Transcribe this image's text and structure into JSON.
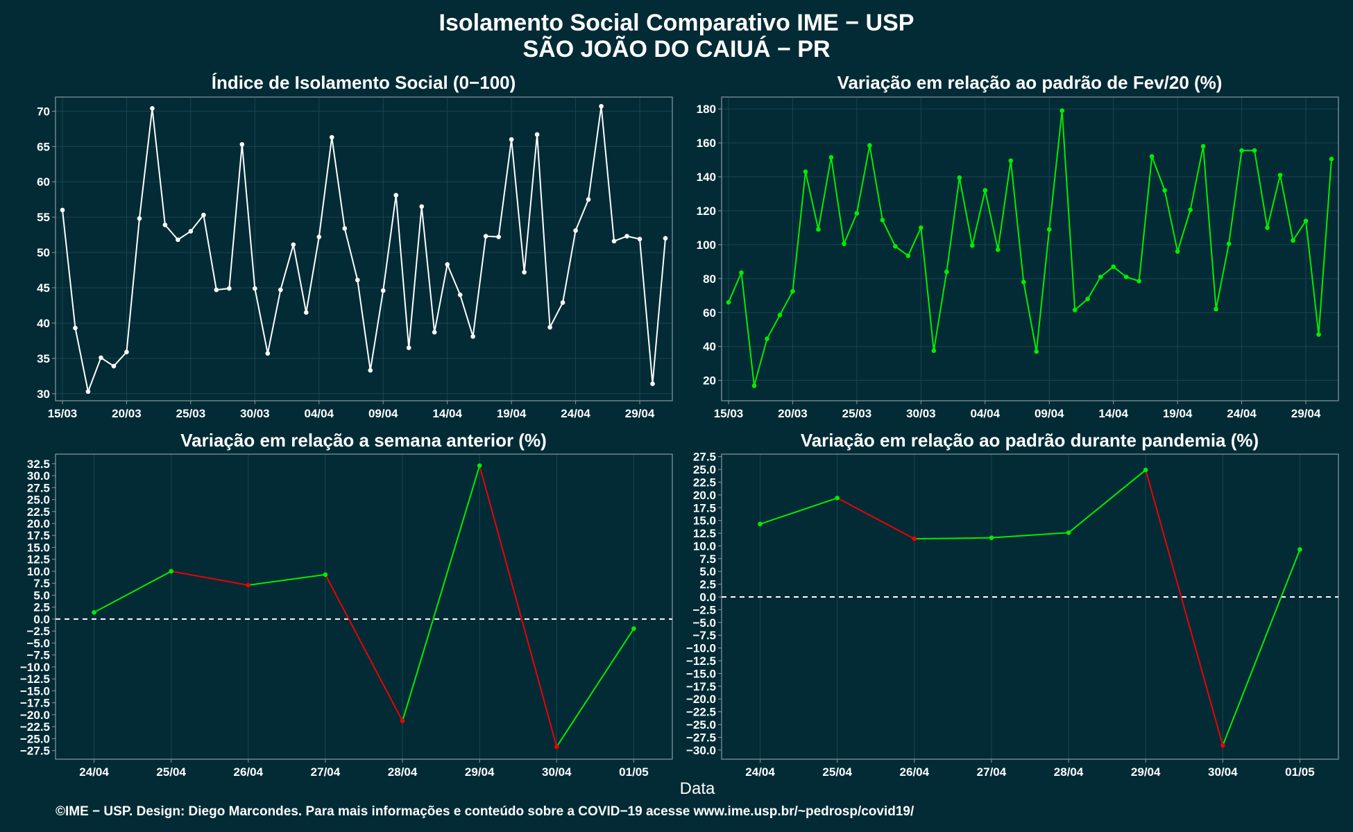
{
  "header": {
    "title_line1": "Isolamento Social Comparativo IME − USP",
    "title_line2": "SÃO JOÃO DO CAIUÁ − PR"
  },
  "footer": {
    "text": "©IME − USP. Design: Diego Marcondes. Para mais informações e conteúdo sobre a COVID−19 acesse www.ime.usp.br/~pedrosp/covid19/"
  },
  "colors": {
    "background": "#022b36",
    "white": "#ffffff",
    "green": "#00ee00",
    "red": "#ee0000"
  },
  "chart_data": [
    {
      "type": "line",
      "title": "Índice de Isolamento Social (0−100)",
      "xlabel": "",
      "ylabel": "",
      "x_tick_labels": [
        "15/03",
        "20/03",
        "25/03",
        "30/03",
        "04/04",
        "09/04",
        "14/04",
        "19/04",
        "24/04",
        "29/04"
      ],
      "ylim": [
        29,
        72
      ],
      "y_ticks": [
        30,
        35,
        40,
        45,
        50,
        55,
        60,
        65,
        70
      ],
      "line_color": "white",
      "series": [
        {
          "dates": [
            "15/03",
            "16/03",
            "17/03",
            "18/03",
            "19/03",
            "20/03",
            "21/03",
            "22/03",
            "23/03",
            "24/03",
            "25/03",
            "26/03",
            "27/03",
            "28/03",
            "29/03",
            "30/03",
            "31/03",
            "01/04",
            "02/04",
            "03/04",
            "04/04",
            "05/04",
            "06/04",
            "07/04",
            "08/04",
            "09/04",
            "10/04",
            "11/04",
            "12/04",
            "13/04",
            "14/04",
            "15/04",
            "16/04",
            "17/04",
            "18/04",
            "19/04",
            "20/04",
            "21/04",
            "22/04",
            "23/04",
            "24/04",
            "25/04",
            "26/04",
            "27/04",
            "28/04",
            "29/04",
            "30/04",
            "01/05"
          ],
          "values": [
            56,
            39.3,
            30.3,
            35.1,
            33.9,
            35.9,
            54.8,
            70.4,
            53.9,
            51.8,
            53.0,
            55.3,
            44.7,
            44.9,
            65.3,
            44.9,
            35.7,
            44.7,
            51.1,
            41.5,
            52.2,
            66.3,
            53.4,
            46.1,
            33.3,
            44.6,
            58.1,
            36.5,
            56.5,
            38.7,
            48.3,
            44.0,
            38.1,
            52.3,
            52.2,
            66.0,
            47.2,
            66.7,
            39.4,
            42.9,
            53.1,
            57.5,
            70.7,
            51.6,
            52.3,
            51.9,
            31.4,
            52.0
          ]
        }
      ],
      "grid": true
    },
    {
      "type": "line",
      "title": "Variação em relação ao padrão de Fev/20 (%)",
      "xlabel": "",
      "ylabel": "",
      "x_tick_labels": [
        "15/03",
        "20/03",
        "25/03",
        "30/03",
        "04/04",
        "09/04",
        "14/04",
        "19/04",
        "24/04",
        "29/04"
      ],
      "ylim": [
        8,
        187
      ],
      "y_ticks": [
        20,
        40,
        60,
        80,
        100,
        120,
        140,
        160,
        180
      ],
      "line_color": "green",
      "series": [
        {
          "dates": [
            "15/03",
            "16/03",
            "17/03",
            "18/03",
            "19/03",
            "20/03",
            "21/03",
            "22/03",
            "23/03",
            "24/03",
            "25/03",
            "26/03",
            "27/03",
            "28/03",
            "29/03",
            "30/03",
            "31/03",
            "01/04",
            "02/04",
            "03/04",
            "04/04",
            "05/04",
            "06/04",
            "07/04",
            "08/04",
            "09/04",
            "10/04",
            "11/04",
            "12/04",
            "13/04",
            "14/04",
            "15/04",
            "16/04",
            "17/04",
            "18/04",
            "19/04",
            "20/04",
            "21/04",
            "22/04",
            "23/04",
            "24/04",
            "25/04",
            "26/04",
            "27/04",
            "28/04",
            "29/04",
            "30/04",
            "01/05"
          ],
          "values": [
            66,
            83.5,
            16.8,
            44.5,
            58.5,
            72.5,
            143,
            109,
            151.5,
            100.5,
            118.5,
            158.5,
            114.5,
            99,
            93.5,
            110,
            37.5,
            84,
            139.5,
            99.5,
            132,
            97,
            149.5,
            78,
            37,
            109,
            179,
            61.5,
            68,
            81,
            87,
            81,
            78.5,
            152,
            132,
            96,
            120.5,
            158,
            62,
            100.5,
            155.5,
            155.5,
            110,
            141,
            102.5,
            114,
            47,
            150.5
          ]
        }
      ],
      "grid": true
    },
    {
      "type": "line",
      "title": "Variação em relação a semana anterior (%)",
      "xlabel": "",
      "ylabel": "",
      "categories": [
        "24/04",
        "25/04",
        "26/04",
        "27/04",
        "28/04",
        "29/04",
        "30/04",
        "01/05"
      ],
      "ylim": [
        -29.3,
        34.5
      ],
      "y_ticks": [
        -27.5,
        -25.0,
        -22.5,
        -20.0,
        -17.5,
        -15.0,
        -12.5,
        -10.0,
        -7.5,
        -5.0,
        -2.5,
        0.0,
        2.5,
        5.0,
        7.5,
        10.0,
        12.5,
        15.0,
        17.5,
        20.0,
        22.5,
        25.0,
        27.5,
        30.0,
        32.5
      ],
      "y_tick_labels": [
        "−27.5",
        "−25.0",
        "−22.5",
        "−20.0",
        "−17.5",
        "−15.0",
        "−12.5",
        "−10.0",
        "−7.5",
        "−5.0",
        "−2.5",
        "0.0",
        "2.5",
        "5.0",
        "7.5",
        "10.0",
        "12.5",
        "15.0",
        "17.5",
        "20.0",
        "22.5",
        "25.0",
        "27.5",
        "30.0",
        "32.5"
      ],
      "series": [
        {
          "values": [
            1.4,
            10.0,
            7.1,
            9.3,
            -21.3,
            32.1,
            -26.7,
            -2.0
          ]
        }
      ],
      "reference_line": 0,
      "segment_color_rule": "green when increasing, red when decreasing",
      "grid": true
    },
    {
      "type": "line",
      "title": "Variação em relação ao padrão durante pandemia (%)",
      "xlabel": "",
      "ylabel": "",
      "categories": [
        "24/04",
        "25/04",
        "26/04",
        "27/04",
        "28/04",
        "29/04",
        "30/04",
        "01/05"
      ],
      "ylim": [
        -31.8,
        28.0
      ],
      "y_ticks": [
        -30.0,
        -27.5,
        -25.0,
        -22.5,
        -20.0,
        -17.5,
        -15.0,
        -12.5,
        -10.0,
        -7.5,
        -5.0,
        -2.5,
        0.0,
        2.5,
        5.0,
        7.5,
        10.0,
        12.5,
        15.0,
        17.5,
        20.0,
        22.5,
        25.0,
        27.5
      ],
      "y_tick_labels": [
        "−30.0",
        "−27.5",
        "−25.0",
        "−22.5",
        "−20.0",
        "−17.5",
        "−15.0",
        "−12.5",
        "−10.0",
        "−7.5",
        "−5.0",
        "−2.5",
        "0.0",
        "2.5",
        "5.0",
        "7.5",
        "10.0",
        "12.5",
        "15.0",
        "17.5",
        "20.0",
        "22.5",
        "25.0",
        "27.5"
      ],
      "series": [
        {
          "values": [
            14.3,
            19.4,
            11.4,
            11.6,
            12.6,
            24.9,
            -29.1,
            9.3
          ]
        }
      ],
      "reference_line": 0,
      "segment_color_rule": "green when increasing, red when decreasing",
      "grid": true
    }
  ],
  "shared_xlabel": "Data"
}
